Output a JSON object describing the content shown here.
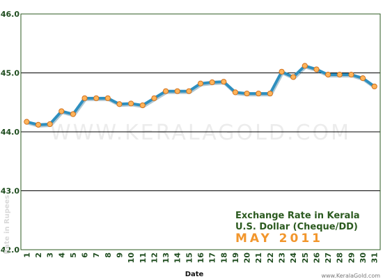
{
  "chart_data": {
    "type": "line",
    "title": "Exchange Rate in Kerala",
    "subtitle": "U.S. Dollar (Cheque/DD)",
    "period": "MAY 2011",
    "xlabel": "Date",
    "ylabel": "Rate in Rupees",
    "watermark": "WWW.KERALAGOLD.COM",
    "credit": "www.KeralaGold.com",
    "ylim": [
      42.0,
      46.0
    ],
    "yticks": [
      "42.0",
      "43.0",
      "44.0",
      "45.0",
      "46.0"
    ],
    "grid": true,
    "categories": [
      "1",
      "2",
      "3",
      "4",
      "5",
      "6",
      "7",
      "8",
      "9",
      "10",
      "11",
      "12",
      "13",
      "14",
      "15",
      "16",
      "17",
      "18",
      "19",
      "20",
      "21",
      "22",
      "23",
      "24",
      "25",
      "26",
      "27",
      "28",
      "29",
      "30",
      "31"
    ],
    "values": [
      44.17,
      44.12,
      44.13,
      44.35,
      44.3,
      44.57,
      44.57,
      44.57,
      44.47,
      44.48,
      44.45,
      44.57,
      44.69,
      44.69,
      44.69,
      44.82,
      44.84,
      44.85,
      44.67,
      44.65,
      44.65,
      44.65,
      45.02,
      44.93,
      45.12,
      45.06,
      44.97,
      44.97,
      44.97,
      44.91,
      44.77
    ],
    "colors": {
      "line": "#2e8fbf",
      "line_shadow": "#1d5f80",
      "marker_fill": "#ffb45a",
      "marker_stroke": "#d2721e",
      "axis_text": "#1f4d1f",
      "title_text": "#2b5a1f",
      "period_text": "#f2962c",
      "ylabel_text": "#d9d9d9",
      "watermark_text": "#ececec",
      "grid": "#000000",
      "axis": "#2b5a1f"
    }
  }
}
